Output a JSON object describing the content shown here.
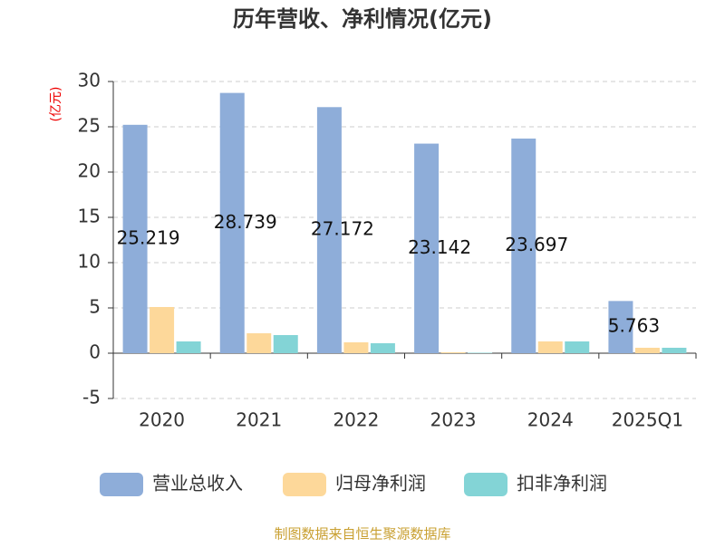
{
  "chart_data": {
    "type": "bar",
    "title": "历年营收、净利情况(亿元)",
    "y_label": "(亿元)",
    "categories": [
      "2020",
      "2021",
      "2022",
      "2023",
      "2024",
      "2025Q1"
    ],
    "series": [
      {
        "name": "营业总收入",
        "color": "#8eadd9",
        "values": [
          25.219,
          28.739,
          27.172,
          23.142,
          23.697,
          5.763
        ],
        "data_labels": true
      },
      {
        "name": "归母净利润",
        "color": "#fdd89a",
        "values": [
          5.1,
          2.2,
          1.2,
          0.1,
          1.3,
          0.6
        ]
      },
      {
        "name": "扣非净利润",
        "color": "#83d4d6",
        "values": [
          1.3,
          2.0,
          1.1,
          0.05,
          1.3,
          0.6
        ]
      }
    ],
    "ylim": [
      -5,
      30
    ],
    "yticks": [
      -5,
      0,
      5,
      10,
      15,
      20,
      25,
      30
    ],
    "grid": true,
    "source": "制图数据来自恒生聚源数据库"
  }
}
